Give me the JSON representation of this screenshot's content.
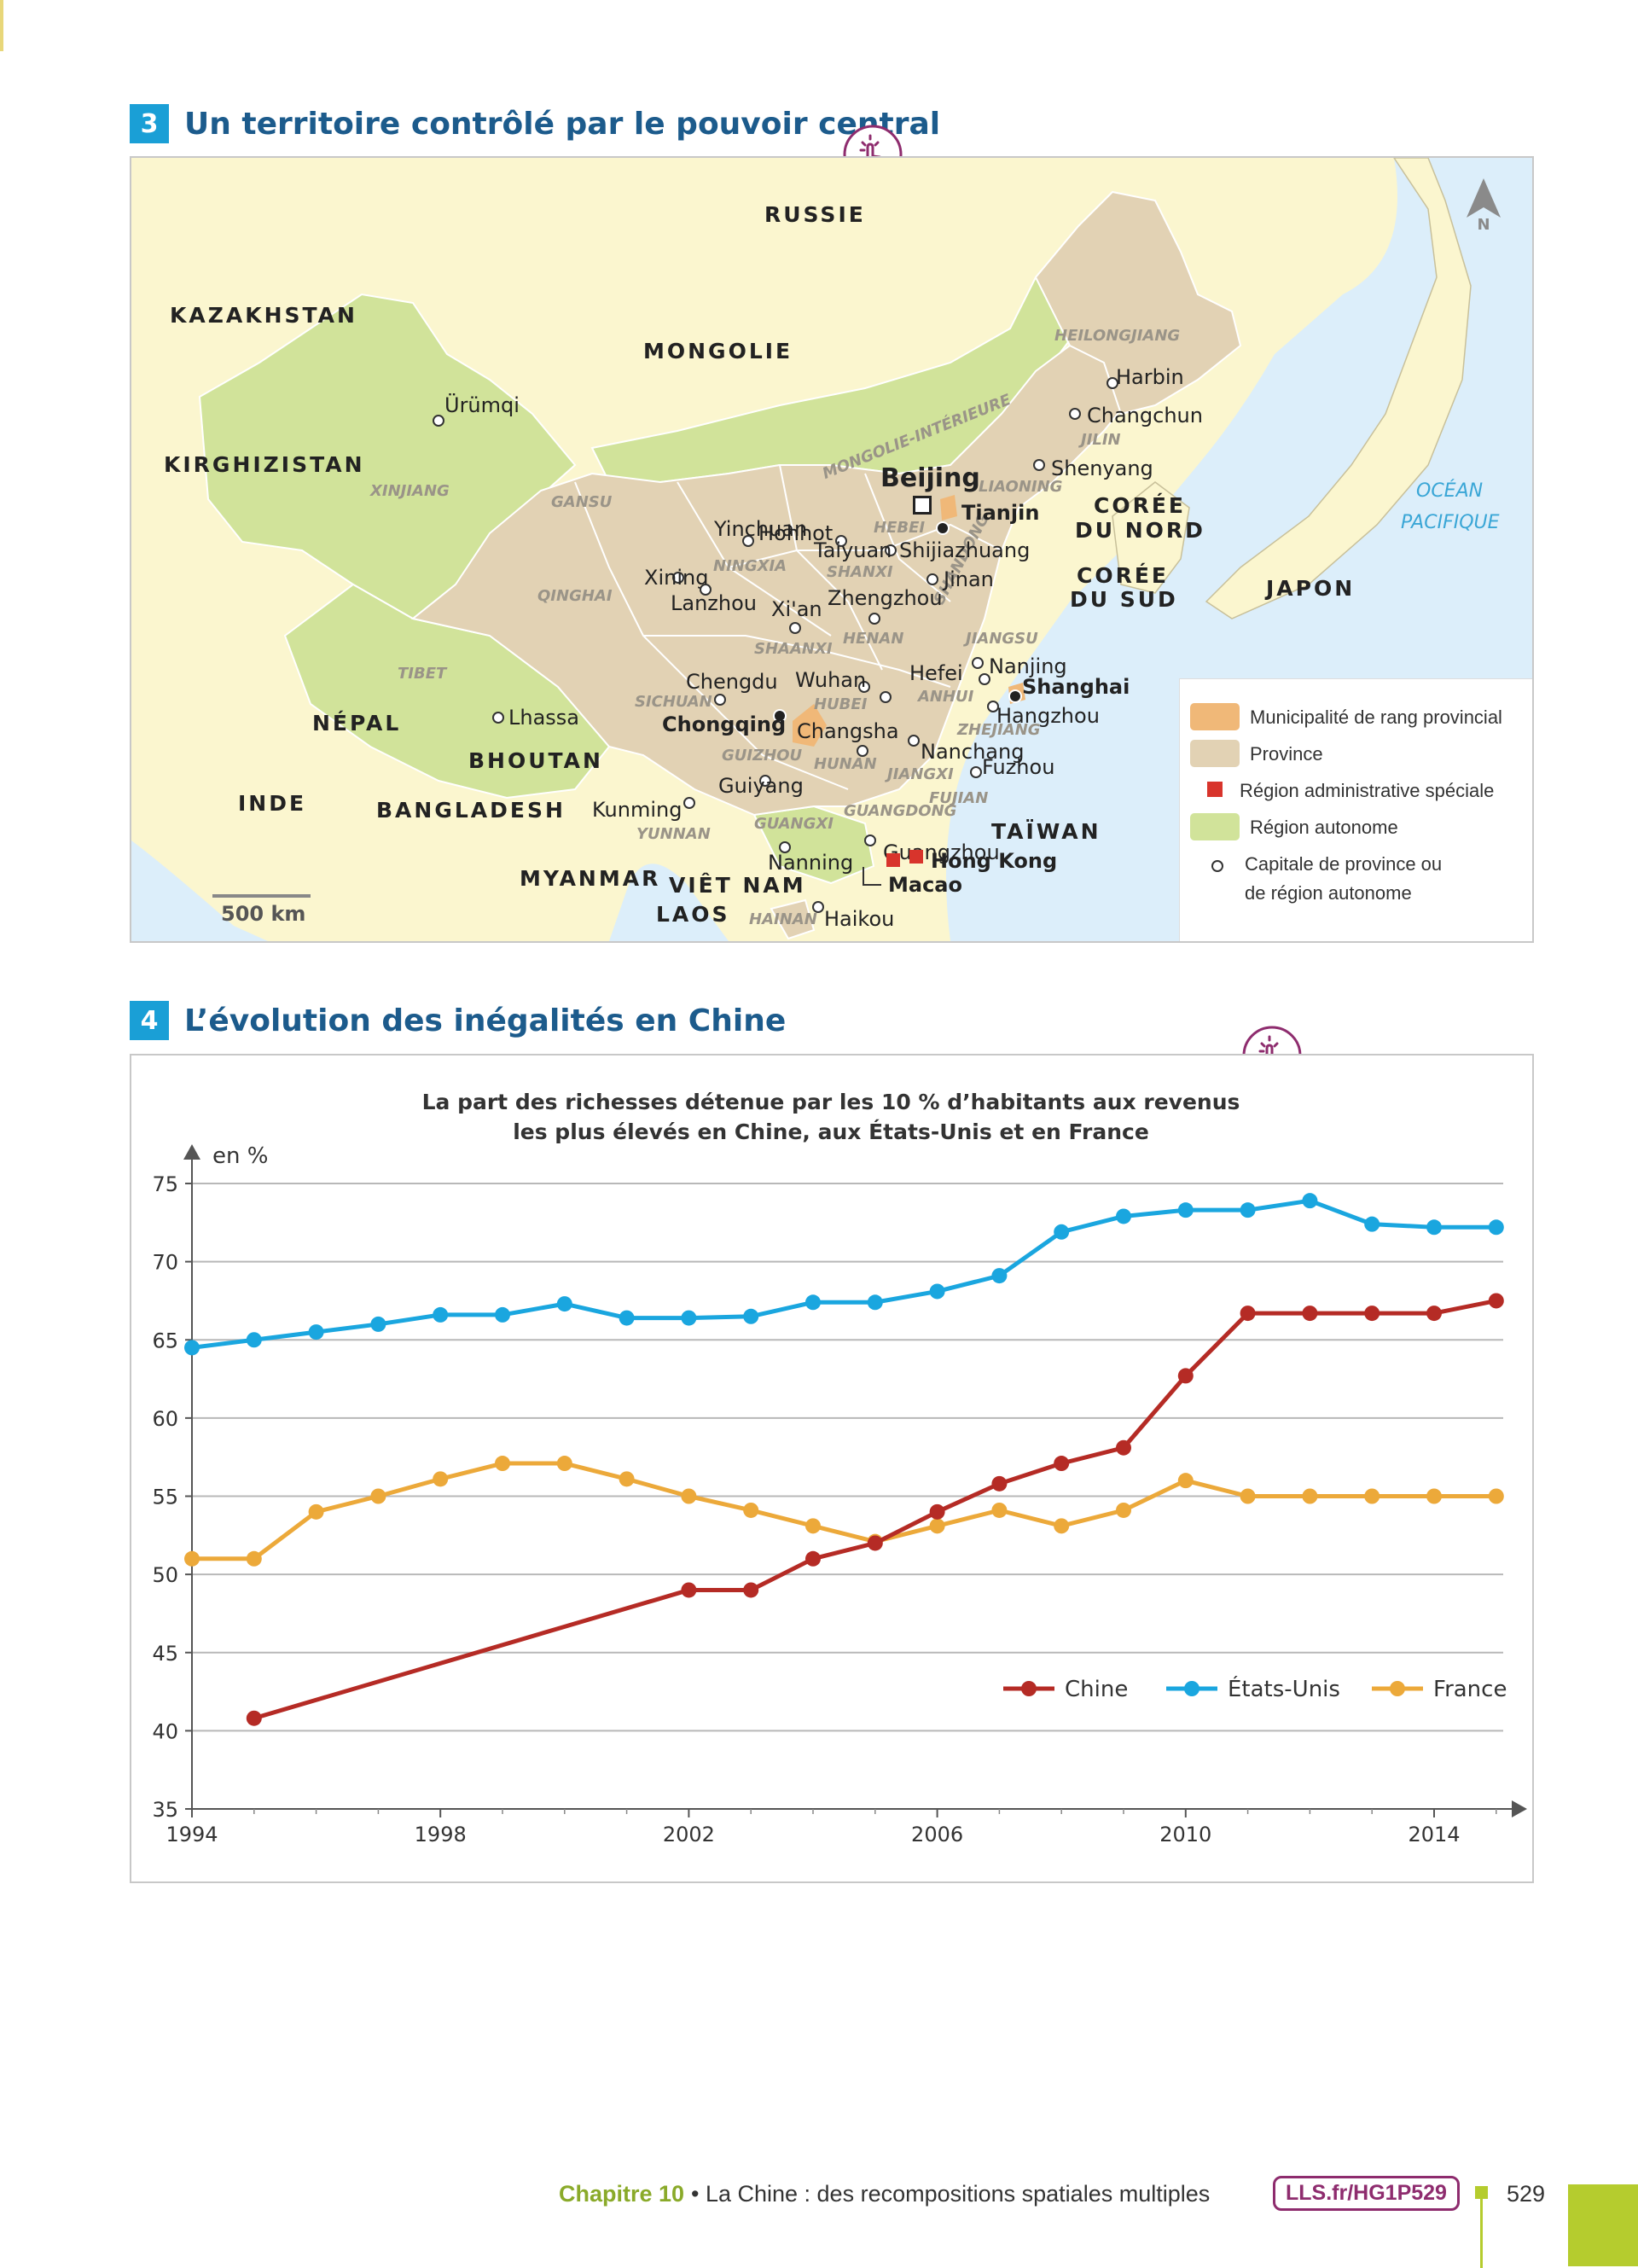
{
  "section3": {
    "number": "3",
    "title": "Un territoire contrôlé par le pouvoir central"
  },
  "map": {
    "north": "N",
    "scale": "500 km",
    "countries": [
      "RUSSIE",
      "KAZAKHSTAN",
      "MONGOLIE",
      "KIRGHIZISTAN",
      "CORÉE",
      "DU NORD",
      "CORÉE",
      "DU SUD",
      "JAPON",
      "TAÏWAN",
      "NÉPAL",
      "BHOUTAN",
      "INDE",
      "BANGLADESH",
      "MYANMAR",
      "VIÊT NAM",
      "LAOS"
    ],
    "ocean": [
      "OCÉAN",
      "PACIFIQUE"
    ],
    "regions": [
      "XINJIANG",
      "GANSU",
      "QINGHAI",
      "TIBET",
      "MONGOLIE-INTÉRIEURE",
      "NINGXIA",
      "SHANXI",
      "HEBEI",
      "SHAANXI",
      "HENAN",
      "SHANDONG",
      "JIANGSU",
      "ANHUI",
      "ZHEJIANG",
      "HUBEI",
      "SICHUAN",
      "GUIZHOU",
      "HUNAN",
      "JIANGXI",
      "FUJIAN",
      "GUANGDONG",
      "GUANGXI",
      "YUNNAN",
      "HAINAN",
      "LIAONING",
      "JILIN",
      "HEILONGJIANG"
    ],
    "cities": [
      "Ürümqi",
      "Lhassa",
      "Xining",
      "Lanzhou",
      "Yinchuan",
      "Hohhot",
      "Taiyuan",
      "Shijiazhuang",
      "Jinan",
      "Xi'an",
      "Zhengzhou",
      "Chengdu",
      "Wuhan",
      "Hefei",
      "Nanjing",
      "Hangzhou",
      "Changsha",
      "Nanchang",
      "Fuzhou",
      "Guiyang",
      "Kunming",
      "Nanning",
      "Guangzhou",
      "Haikou",
      "Harbin",
      "Changchun",
      "Shenyang"
    ],
    "capital": "Beijing",
    "municipalities": [
      "Tianjin",
      "Shanghai",
      "Chongqing"
    ],
    "sar": [
      "Hong Kong",
      "Macao"
    ],
    "legend": [
      {
        "label": "Municipalité de rang provincial",
        "color": "#f0b878"
      },
      {
        "label": "Province",
        "color": "#e2d2b4"
      },
      {
        "label": "Région administrative spéciale",
        "color": "#d8342c"
      },
      {
        "label": "Région autonome",
        "color": "#d1e39a"
      },
      {
        "label": "Capitale de province ou",
        "label2": "de région autonome"
      }
    ]
  },
  "section4": {
    "number": "4",
    "title": "L’évolution des inégalités en Chine"
  },
  "chart_data": {
    "type": "line",
    "title": "La part des richesses détenue par les 10 % d’habitants aux revenus",
    "subtitle": "les plus élevés en Chine, aux États-Unis et en France",
    "ylabel": "en %",
    "ylim": [
      35,
      75
    ],
    "xlim": [
      1994,
      2015
    ],
    "yticks": [
      "35",
      "40",
      "45",
      "50",
      "55",
      "60",
      "65",
      "70",
      "75"
    ],
    "xticks": [
      "1994",
      "1998",
      "2002",
      "2006",
      "2010",
      "2014"
    ],
    "legend_position": "bottom-right",
    "series": [
      {
        "name": "Chine",
        "color": "#b52b25",
        "x": [
          1995,
          2002,
          2003,
          2004,
          2005,
          2006,
          2007,
          2008,
          2009,
          2010,
          2011,
          2012,
          2013,
          2014,
          2015
        ],
        "y": [
          40.8,
          49,
          49,
          51,
          52,
          54,
          55.8,
          57.1,
          58.1,
          62.7,
          66.7,
          66.7,
          66.7,
          66.7,
          67.5
        ]
      },
      {
        "name": "États-Unis",
        "color": "#1aa6df",
        "x": [
          1994,
          1995,
          1996,
          1997,
          1998,
          1999,
          2000,
          2001,
          2002,
          2003,
          2004,
          2005,
          2006,
          2007,
          2008,
          2009,
          2010,
          2011,
          2012,
          2013,
          2014,
          2015
        ],
        "y": [
          64.5,
          65,
          65.5,
          66,
          66.6,
          66.6,
          67.3,
          66.4,
          66.4,
          66.5,
          67.4,
          67.4,
          68.1,
          69.1,
          71.9,
          72.9,
          73.3,
          73.3,
          73.9,
          72.4,
          72.2,
          72.2
        ]
      },
      {
        "name": "France",
        "color": "#eca93a",
        "x": [
          1994,
          1995,
          1996,
          1997,
          1998,
          1999,
          2000,
          2001,
          2002,
          2003,
          2004,
          2005,
          2006,
          2007,
          2008,
          2009,
          2010,
          2011,
          2012,
          2013,
          2014,
          2015
        ],
        "y": [
          51,
          51,
          54,
          55,
          56.1,
          57.1,
          57.1,
          56.1,
          55,
          54.1,
          53.1,
          52.1,
          53.1,
          54.1,
          53.1,
          54.1,
          56,
          55,
          55,
          55,
          55,
          55
        ]
      }
    ]
  },
  "footer": {
    "chapter": "Chapitre 10",
    "text": "• La Chine : des recompositions spatiales multiples",
    "link": "LLS.fr/HG1P529",
    "page": "529"
  }
}
